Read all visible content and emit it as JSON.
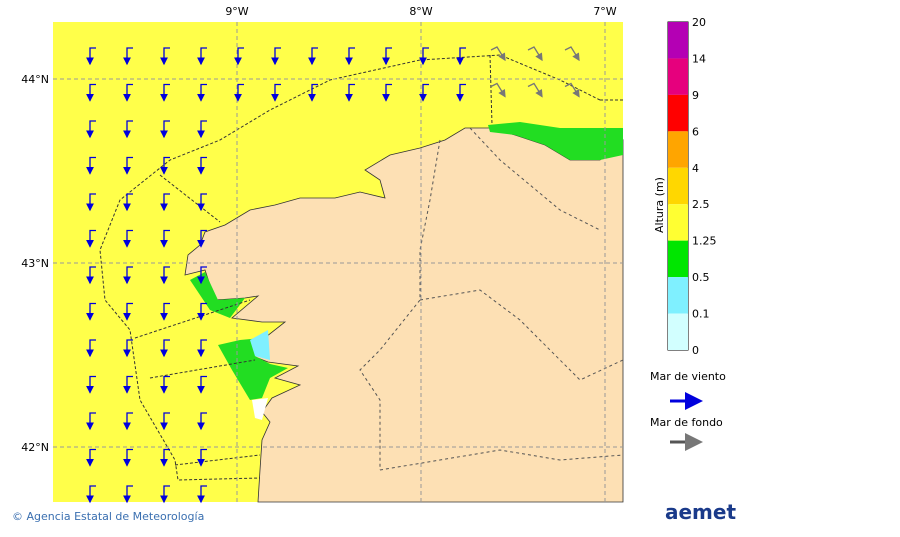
{
  "map": {
    "lon_ticks": [
      "9°W",
      "8°W",
      "7°W"
    ],
    "lat_ticks": [
      "44°N",
      "43°N",
      "42°N"
    ]
  },
  "colorbar": {
    "title": "Altura (m)",
    "levels": [
      20,
      14,
      9,
      6,
      4,
      2.5,
      1.25,
      0.5,
      0.1,
      0
    ],
    "colors": [
      "#b400b4",
      "#e6007d",
      "#ff0000",
      "#ffa500",
      "#ffd700",
      "#ffff32",
      "#00e600",
      "#7ff0ff",
      "#d2ffff"
    ]
  },
  "legend": {
    "wind_sea": "Mar de viento",
    "swell": "Mar de fondo"
  },
  "footer": {
    "credit": "© Agencia Estatal de Meteorología",
    "logo": "aemet"
  }
}
